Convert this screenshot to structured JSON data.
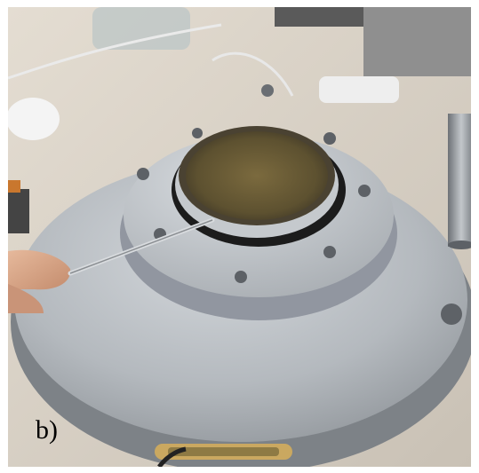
{
  "figure": {
    "panel_label": "b)"
  },
  "colors": {
    "bench": "#d6cfc4",
    "metal_light": "#c8ccd0",
    "metal_mid": "#a4a9ae",
    "metal_dark": "#6c7176",
    "oring": "#1e1e1e",
    "skin": "#d9a88a"
  }
}
